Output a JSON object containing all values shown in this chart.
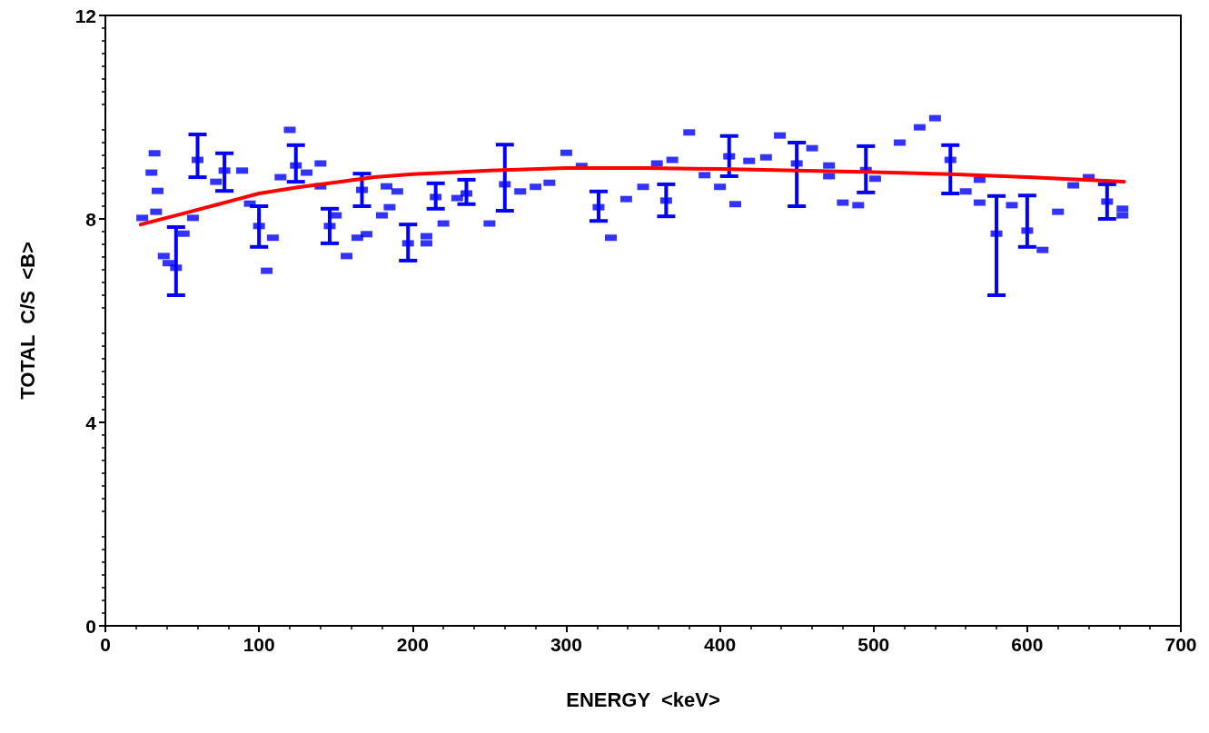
{
  "chart_data": {
    "type": "scatter",
    "xlabel": "ENERGY  <keV>",
    "ylabel": "TOTAL  C/S  <B>",
    "xlim": [
      0,
      700
    ],
    "xticks": [
      0,
      100,
      200,
      300,
      400,
      500,
      600,
      700
    ],
    "ylim": [
      0,
      12
    ],
    "yticks": [
      0,
      4,
      8,
      12
    ],
    "grid": false,
    "series": [
      {
        "color": "#0000ff",
        "marker": "square",
        "x": [
          32,
          30,
          34,
          33,
          24,
          46,
          51,
          38,
          41,
          57,
          60,
          77.5,
          89,
          72,
          100,
          94,
          109,
          105,
          120,
          124,
          114,
          131,
          140,
          140,
          146,
          150,
          157,
          167,
          164,
          170,
          180,
          185,
          183,
          190,
          197,
          209,
          209,
          215,
          220,
          235,
          229,
          250,
          260,
          270,
          280,
          289,
          300,
          310,
          321,
          329,
          339,
          350,
          359,
          369,
          365,
          380,
          390,
          400,
          406,
          410,
          419,
          430,
          439,
          450,
          460,
          471,
          471,
          480,
          490,
          495,
          501,
          517,
          530,
          540,
          550,
          560,
          569,
          569,
          580,
          590,
          600,
          610,
          620,
          630,
          640,
          652,
          662,
          662
        ],
        "values": [
          9.29,
          8.91,
          8.55,
          8.14,
          8.02,
          7.04,
          7.71,
          7.27,
          7.13,
          8.02,
          9.16,
          8.95,
          8.95,
          8.73,
          7.86,
          8.3,
          7.63,
          6.98,
          9.75,
          9.05,
          8.82,
          8.91,
          9.09,
          8.64,
          7.86,
          8.07,
          7.27,
          8.57,
          7.63,
          7.7,
          8.07,
          8.23,
          8.64,
          8.54,
          7.52,
          7.66,
          7.52,
          8.43,
          7.91,
          8.5,
          8.41,
          7.91,
          8.68,
          8.54,
          8.63,
          8.71,
          9.3,
          9.04,
          8.23,
          7.63,
          8.39,
          8.63,
          9.09,
          9.16,
          8.36,
          9.7,
          8.86,
          8.63,
          9.23,
          8.29,
          9.14,
          9.21,
          9.64,
          9.09,
          9.39,
          9.05,
          8.84,
          8.32,
          8.27,
          8.96,
          8.79,
          9.5,
          9.8,
          9.98,
          9.16,
          8.54,
          8.77,
          8.32,
          7.71,
          8.27,
          7.77,
          7.39,
          8.14,
          8.66,
          8.82,
          8.34,
          8.2,
          8.07
        ],
        "errors": [
          null,
          null,
          null,
          null,
          null,
          [
            6.5,
            7.84
          ],
          null,
          null,
          null,
          null,
          [
            8.82,
            9.66
          ],
          [
            8.55,
            9.29
          ],
          null,
          null,
          [
            7.45,
            8.25
          ],
          null,
          null,
          null,
          null,
          [
            8.73,
            9.45
          ],
          null,
          null,
          null,
          null,
          [
            7.52,
            8.2
          ],
          null,
          null,
          [
            8.25,
            8.89
          ],
          null,
          null,
          null,
          null,
          null,
          null,
          [
            7.18,
            7.89
          ],
          null,
          null,
          [
            8.2,
            8.7
          ],
          null,
          [
            8.29,
            8.77
          ],
          null,
          null,
          [
            8.16,
            9.46
          ],
          null,
          null,
          null,
          null,
          null,
          [
            7.96,
            8.54
          ],
          null,
          null,
          null,
          null,
          null,
          [
            8.05,
            8.68
          ],
          null,
          null,
          null,
          [
            8.84,
            9.63
          ],
          null,
          null,
          null,
          null,
          [
            8.25,
            9.5
          ],
          null,
          null,
          null,
          null,
          null,
          [
            8.52,
            9.43
          ],
          null,
          null,
          null,
          null,
          [
            8.5,
            9.45
          ],
          null,
          null,
          null,
          [
            6.5,
            8.45
          ],
          null,
          [
            7.45,
            8.46
          ],
          null,
          null,
          null,
          null,
          [
            8.0,
            8.68
          ],
          null,
          null
        ]
      },
      {
        "type": "line",
        "color": "#ff0000",
        "marker": "none",
        "x": [
          23,
          50,
          75,
          100,
          125,
          150,
          175,
          200,
          250,
          300,
          350,
          400,
          450,
          500,
          550,
          600,
          663
        ],
        "values": [
          7.89,
          8.1,
          8.3,
          8.5,
          8.62,
          8.72,
          8.82,
          8.88,
          8.95,
          9.0,
          9.0,
          8.98,
          8.95,
          8.92,
          8.88,
          8.82,
          8.73
        ]
      }
    ]
  }
}
